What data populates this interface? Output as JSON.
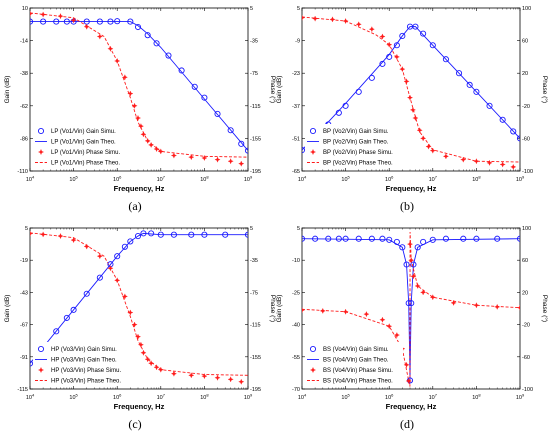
{
  "colors": {
    "gain": "#1a1aff",
    "phase": "#ff1a1a",
    "axis": "#000000",
    "legend_bg": "#ffffff"
  },
  "chart_data": [
    {
      "type": "line",
      "panel_label": "(a)",
      "xlabel": "Frequency, Hz",
      "ylabel_left": "Gain (dB)",
      "ylabel_right": "Phase (°)",
      "xscale": "log",
      "xlim": [
        10000,
        1000000000
      ],
      "x_ticks": [
        "10^4",
        "10^5",
        "10^6",
        "10^7",
        "10^8",
        "10^9"
      ],
      "y_left_ticks": [
        "10",
        "-14",
        "-38",
        "-62",
        "-86",
        "-110"
      ],
      "y_left_lim": [
        -110,
        10
      ],
      "y_right_ticks": [
        "5",
        "-35",
        "-75",
        "-115",
        "-155",
        "-195"
      ],
      "y_right_lim": [
        -195,
        5
      ],
      "grid": false,
      "legend_position": "bottom-left",
      "legend": [
        "LP (Vo1/Vin) Gain Simu.",
        "LP (Vo1/Vin) Gain Theo.",
        "LP (Vo1/Vin) Phase Simu.",
        "LP (Vo1/Vin) Phase Theo."
      ],
      "series": [
        {
          "name": "LP (Vo1/Vin) Gain Simu.",
          "axis": "left",
          "style": "markers-circle",
          "x": [
            10000,
            20000,
            40000,
            70000,
            100000,
            200000,
            400000,
            700000,
            1000000,
            2000000,
            3000000,
            5000000,
            8000000,
            15000000,
            30000000,
            60000000,
            100000000,
            200000000,
            400000000,
            700000000,
            1000000000
          ],
          "y": [
            0,
            0,
            0,
            0,
            0,
            0,
            0,
            0,
            0.3,
            0,
            -4,
            -10,
            -16,
            -25,
            -36,
            -48,
            -56,
            -68,
            -80,
            -90,
            -95
          ]
        },
        {
          "name": "LP (Vo1/Vin) Gain Theo.",
          "axis": "left",
          "style": "solid-line",
          "x": [
            10000,
            100000,
            1000000,
            2000000,
            3000000,
            5000000,
            10000000,
            100000000,
            1000000000
          ],
          "y": [
            0,
            0,
            0,
            0,
            -3,
            -9,
            -19,
            -57,
            -95
          ]
        },
        {
          "name": "LP (Vo1/Vin) Phase Simu.",
          "axis": "right",
          "style": "markers-star",
          "x": [
            10000,
            20000,
            50000,
            100000,
            200000,
            400000,
            700000,
            1000000,
            1500000,
            2000000,
            2500000,
            3000000,
            3500000,
            4000000,
            5000000,
            6000000,
            8000000,
            10000000,
            20000000,
            50000000,
            100000000,
            200000000,
            400000000,
            700000000
          ],
          "y": [
            -2,
            -3,
            -5,
            -10,
            -18,
            -30,
            -45,
            -60,
            -80,
            -100,
            -115,
            -130,
            -140,
            -150,
            -158,
            -163,
            -168,
            -171,
            -176,
            -178,
            -179,
            -181,
            -183,
            -186
          ]
        },
        {
          "name": "LP (Vo1/Vin) Phase Theo.",
          "axis": "right",
          "style": "dashed-line",
          "x": [
            10000,
            100000,
            500000,
            1000000,
            2000000,
            3000000,
            5000000,
            10000000,
            100000000,
            1000000000
          ],
          "y": [
            -1,
            -7,
            -30,
            -60,
            -105,
            -135,
            -158,
            -171,
            -177,
            -178
          ]
        }
      ]
    },
    {
      "type": "line",
      "panel_label": "(b)",
      "xlabel": "Frequency, Hz",
      "ylabel_left": "Gain (dB)",
      "ylabel_right": "Phase (°)",
      "xscale": "log",
      "xlim": [
        10000,
        1000000000
      ],
      "x_ticks": [
        "10^4",
        "10^5",
        "10^6",
        "10^7",
        "10^8",
        "10^9"
      ],
      "y_left_ticks": [
        "5",
        "-9",
        "-23",
        "-37",
        "-51",
        "-65"
      ],
      "y_left_lim": [
        -65,
        5
      ],
      "y_right_ticks": [
        "100",
        "60",
        "20",
        "-20",
        "-60",
        "-100"
      ],
      "y_right_lim": [
        -100,
        100
      ],
      "grid": false,
      "legend_position": "bottom-left",
      "legend": [
        "BP (Vo2/Vin) Gain Simu.",
        "BP (Vo2/Vin) Gain Theo.",
        "BP (Vo2/Vin) Phase Simu.",
        "BP (Vo2/Vin) Phase Theo."
      ],
      "series": [
        {
          "name": "BP (Vo2/Vin) Gain Simu.",
          "axis": "left",
          "style": "markers-circle",
          "x": [
            10000,
            20000,
            40000,
            70000,
            100000,
            200000,
            400000,
            700000,
            1000000,
            1500000,
            2000000,
            3000000,
            4000000,
            6000000,
            10000000,
            20000000,
            40000000,
            70000000,
            100000000,
            200000000,
            400000000,
            700000000,
            1000000000
          ],
          "y": [
            -56,
            -51,
            -45,
            -40,
            -37,
            -31,
            -25,
            -19,
            -16,
            -11,
            -7,
            -3,
            -3,
            -6,
            -11,
            -17,
            -23,
            -28,
            -31,
            -37,
            -43,
            -48,
            -51
          ]
        },
        {
          "name": "BP (Vo2/Vin) Gain Theo.",
          "axis": "left",
          "style": "solid-line",
          "x": [
            10000,
            100000,
            1000000,
            2000000,
            3000000,
            4000000,
            10000000,
            100000000,
            1000000000
          ],
          "y": [
            -56,
            -36,
            -15,
            -7,
            -3,
            -3,
            -11,
            -31,
            -51
          ]
        },
        {
          "name": "BP (Vo2/Vin) Phase Simu.",
          "axis": "right",
          "style": "markers-star",
          "x": [
            10000,
            20000,
            50000,
            100000,
            200000,
            400000,
            700000,
            1000000,
            1500000,
            2000000,
            2500000,
            3000000,
            3500000,
            4000000,
            5000000,
            6000000,
            8000000,
            10000000,
            20000000,
            50000000,
            100000000,
            200000000,
            400000000,
            700000000
          ],
          "y": [
            88,
            87,
            86,
            84,
            80,
            74,
            65,
            55,
            40,
            25,
            10,
            -10,
            -25,
            -35,
            -50,
            -60,
            -70,
            -75,
            -82,
            -86,
            -88,
            -90,
            -92,
            -95
          ]
        },
        {
          "name": "BP (Vo2/Vin) Phase Theo.",
          "axis": "right",
          "style": "dashed-line",
          "x": [
            10000,
            100000,
            500000,
            1000000,
            2000000,
            3000000,
            5000000,
            10000000,
            100000000,
            1000000000
          ],
          "y": [
            89,
            84,
            67,
            55,
            25,
            -10,
            -52,
            -74,
            -88,
            -89
          ]
        }
      ]
    },
    {
      "type": "line",
      "panel_label": "(c)",
      "xlabel": "Frequency, Hz",
      "ylabel_left": "Gain (dB)",
      "ylabel_right": "Phase (°)",
      "xscale": "log",
      "xlim": [
        10000,
        1000000000
      ],
      "x_ticks": [
        "10^4",
        "10^5",
        "10^6",
        "10^7",
        "10^8",
        "10^9"
      ],
      "y_left_ticks": [
        "5",
        "-19",
        "-43",
        "-67",
        "-91",
        "-115"
      ],
      "y_left_lim": [
        -115,
        5
      ],
      "y_right_ticks": [
        "5",
        "-35",
        "-75",
        "-115",
        "-155",
        "-195"
      ],
      "y_right_lim": [
        -195,
        5
      ],
      "grid": false,
      "legend_position": "bottom-left",
      "legend": [
        "HP (Vo3/Vin) Gain Simu.",
        "HP (Vo3/Vin) Gain Theo.",
        "HP (Vo3/Vin) Phase Simu.",
        "HP (Vo3/Vin) Phase Theo."
      ],
      "series": [
        {
          "name": "HP (Vo3/Vin) Gain Simu.",
          "axis": "left",
          "style": "markers-circle",
          "x": [
            10000,
            20000,
            40000,
            70000,
            100000,
            200000,
            400000,
            700000,
            1000000,
            1500000,
            2000000,
            3000000,
            4000000,
            6000000,
            10000000,
            20000000,
            50000000,
            100000000,
            300000000,
            1000000000
          ],
          "y": [
            -96,
            -84,
            -72,
            -62,
            -56,
            -44,
            -32,
            -22,
            -16,
            -9,
            -5,
            -1,
            1,
            1,
            0,
            0,
            0,
            0,
            0,
            0
          ]
        },
        {
          "name": "HP (Vo3/Vin) Gain Theo.",
          "axis": "left",
          "style": "solid-line",
          "x": [
            10000,
            100000,
            1000000,
            2000000,
            3000000,
            4000000,
            10000000,
            1000000000
          ],
          "y": [
            -96,
            -56,
            -16,
            -5,
            -1,
            1,
            0,
            0
          ]
        },
        {
          "name": "HP (Vo3/Vin) Phase Simu.",
          "axis": "right",
          "style": "markers-star",
          "x": [
            10000,
            20000,
            50000,
            100000,
            200000,
            400000,
            700000,
            1000000,
            1500000,
            2000000,
            2500000,
            3000000,
            3500000,
            4000000,
            5000000,
            6000000,
            8000000,
            10000000,
            20000000,
            50000000,
            100000000,
            200000000,
            400000000,
            700000000
          ],
          "y": [
            -2,
            -3,
            -5,
            -10,
            -18,
            -30,
            -45,
            -60,
            -80,
            -100,
            -115,
            -130,
            -140,
            -150,
            -158,
            -163,
            -168,
            -171,
            -176,
            -178,
            -179,
            -181,
            -183,
            -186
          ]
        },
        {
          "name": "HP (Vo3/Vin) Phase Theo.",
          "axis": "right",
          "style": "dashed-line",
          "x": [
            10000,
            100000,
            500000,
            1000000,
            2000000,
            3000000,
            5000000,
            10000000,
            100000000,
            1000000000
          ],
          "y": [
            -1,
            -7,
            -30,
            -60,
            -105,
            -135,
            -158,
            -171,
            -177,
            -178
          ]
        }
      ]
    },
    {
      "type": "line",
      "panel_label": "(d)",
      "xlabel": "Frequency, Hz",
      "ylabel_left": "Gain (dB)",
      "ylabel_right": "Phase (°)",
      "xscale": "log",
      "xlim": [
        10000,
        1000000000
      ],
      "x_ticks": [
        "10^4",
        "10^5",
        "10^6",
        "10^7",
        "10^8",
        "10^9"
      ],
      "y_left_ticks": [
        "5",
        "-10",
        "-25",
        "-40",
        "-55",
        "-70"
      ],
      "y_left_lim": [
        -70,
        5
      ],
      "y_right_ticks": [
        "100",
        "60",
        "20",
        "-20",
        "-60",
        "-100"
      ],
      "y_right_lim": [
        -100,
        100
      ],
      "grid": false,
      "legend_position": "bottom-left",
      "legend": [
        "BS (Vo4/Vin) Gain Simu.",
        "BS (Vo4/Vin) Gain Theo.",
        "BS (Vo4/Vin) Phase Simu.",
        "BS (Vo4/Vin) Phase Theo."
      ],
      "series": [
        {
          "name": "BS (Vo4/Vin) Gain Simu.",
          "axis": "left",
          "style": "markers-circle",
          "x": [
            10000,
            20000,
            40000,
            70000,
            100000,
            200000,
            400000,
            700000,
            1000000,
            1500000,
            2000000,
            2500000,
            2800000,
            3000000,
            3200000,
            3600000,
            4500000,
            6000000,
            10000000,
            20000000,
            50000000,
            100000000,
            300000000,
            1000000000
          ],
          "y": [
            0,
            0,
            0,
            0,
            0,
            0,
            0,
            0,
            -0.5,
            -1.5,
            -4,
            -12,
            -30,
            -66,
            -30,
            -12,
            -4,
            -1.5,
            -0.5,
            0,
            0,
            0,
            0,
            0
          ]
        },
        {
          "name": "BS (Vo4/Vin) Gain Theo.",
          "axis": "left",
          "style": "solid-line",
          "x": [
            10000,
            1000000,
            2000000,
            2500000,
            2800000,
            2950000,
            3000000,
            3050000,
            3200000,
            3600000,
            4500000,
            10000000,
            1000000000
          ],
          "y": [
            0,
            -0.5,
            -4,
            -12,
            -30,
            -55,
            -67,
            -55,
            -30,
            -12,
            -4,
            -0.5,
            0
          ]
        },
        {
          "name": "BS (Vo4/Vin) Phase Simu.",
          "axis": "right",
          "style": "markers-star",
          "x": [
            10000,
            30000,
            100000,
            300000,
            700000,
            1000000,
            1500000,
            2000000,
            2500000,
            2800000,
            3000000,
            3200000,
            3600000,
            4500000,
            6000000,
            10000000,
            30000000,
            100000000,
            300000000,
            1000000000
          ],
          "y": [
            -2,
            -3,
            -4,
            -7,
            -14,
            -22,
            -33,
            -50,
            -70,
            -90,
            80,
            60,
            40,
            28,
            20,
            14,
            7,
            4,
            2,
            1
          ]
        },
        {
          "name": "BS (Vo4/Vin) Phase Theo.",
          "axis": "right",
          "style": "dashed-line",
          "x": [
            10000,
            100000,
            1000000,
            2000000,
            2800000,
            2990000,
            3010000,
            3200000,
            4500000,
            10000000,
            100000000,
            1000000000
          ],
          "y": [
            -1,
            -4,
            -22,
            -50,
            -90,
            -97,
            95,
            60,
            28,
            14,
            4,
            1
          ]
        }
      ]
    }
  ]
}
